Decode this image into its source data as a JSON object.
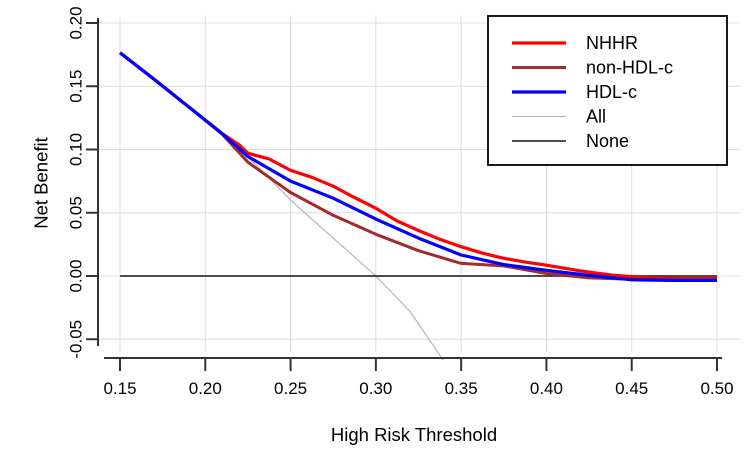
{
  "figure": {
    "description": "Decision curve analysis plot",
    "background": "#ffffff"
  },
  "chart_data": {
    "type": "line",
    "title": "",
    "xlabel": "High Risk Threshold",
    "ylabel": "Net Benefit",
    "xlim": [
      0.15,
      0.5
    ],
    "ylim": [
      -0.062,
      0.2
    ],
    "x_ticks": [
      0.15,
      0.2,
      0.25,
      0.3,
      0.35,
      0.4,
      0.45,
      0.5
    ],
    "x_tick_labels": [
      "0.15",
      "0.20",
      "0.25",
      "0.30",
      "0.35",
      "0.40",
      "0.45",
      "0.50"
    ],
    "y_ticks": [
      -0.05,
      0.0,
      0.05,
      0.1,
      0.15,
      0.2
    ],
    "y_tick_labels": [
      "-0.05",
      "0.00",
      "0.05",
      "0.10",
      "0.15",
      "0.20"
    ],
    "grid": true,
    "grid_color": "#dcdcdc",
    "axis_color": "#333333",
    "legend_position": "top-right",
    "series": [
      {
        "name": "NHHR",
        "color": "#ff0000",
        "width": 3.2,
        "x": [
          0.15,
          0.17,
          0.19,
          0.21,
          0.22,
          0.225,
          0.2375,
          0.25,
          0.2625,
          0.275,
          0.2875,
          0.3,
          0.3125,
          0.325,
          0.3375,
          0.35,
          0.3625,
          0.375,
          0.3875,
          0.4,
          0.42,
          0.44,
          0.46,
          0.48,
          0.5
        ],
        "y": [
          0.1765,
          0.1555,
          0.134,
          0.1125,
          0.1035,
          0.097,
          0.0925,
          0.0835,
          0.078,
          0.071,
          0.062,
          0.0535,
          0.0435,
          0.036,
          0.029,
          0.0232,
          0.018,
          0.014,
          0.011,
          0.0085,
          0.004,
          0.0005,
          -0.0015,
          -0.002,
          -0.002
        ]
      },
      {
        "name": "non-HDL-c",
        "color": "#a52a2a",
        "width": 3.0,
        "x": [
          0.15,
          0.17,
          0.19,
          0.21,
          0.225,
          0.25,
          0.275,
          0.3,
          0.325,
          0.35,
          0.375,
          0.4,
          0.425,
          0.45,
          0.475,
          0.5
        ],
        "y": [
          0.1765,
          0.1555,
          0.134,
          0.112,
          0.09,
          0.066,
          0.048,
          0.033,
          0.02,
          0.01,
          0.008,
          0.002,
          -0.0015,
          -0.0025,
          -0.003,
          -0.003
        ]
      },
      {
        "name": "HDL-c",
        "color": "#0000ff",
        "width": 3.2,
        "x": [
          0.15,
          0.17,
          0.19,
          0.21,
          0.225,
          0.25,
          0.275,
          0.3,
          0.325,
          0.35,
          0.375,
          0.4,
          0.425,
          0.45,
          0.475,
          0.5
        ],
        "y": [
          0.1765,
          0.1555,
          0.134,
          0.1125,
          0.0945,
          0.075,
          0.0615,
          0.045,
          0.03,
          0.0166,
          0.009,
          0.0045,
          0.0005,
          -0.003,
          -0.0035,
          -0.0035
        ]
      },
      {
        "name": "All",
        "color": "#bbbbbb",
        "width": 1.3,
        "x": [
          0.15,
          0.17,
          0.19,
          0.21,
          0.23,
          0.25,
          0.275,
          0.3,
          0.32,
          0.3395
        ],
        "y": [
          0.1765,
          0.1555,
          0.134,
          0.112,
          0.0875,
          0.06,
          0.03,
          0.0,
          -0.028,
          -0.0665
        ]
      },
      {
        "name": "None",
        "color": "#333333",
        "width": 1.8,
        "x": [
          0.15,
          0.5
        ],
        "y": [
          0.0,
          0.0
        ]
      }
    ],
    "draw_order": [
      3,
      4,
      0,
      1,
      2
    ],
    "legend_entries": [
      "NHHR",
      "non-HDL-c",
      "HDL-c",
      "All",
      "None"
    ]
  }
}
